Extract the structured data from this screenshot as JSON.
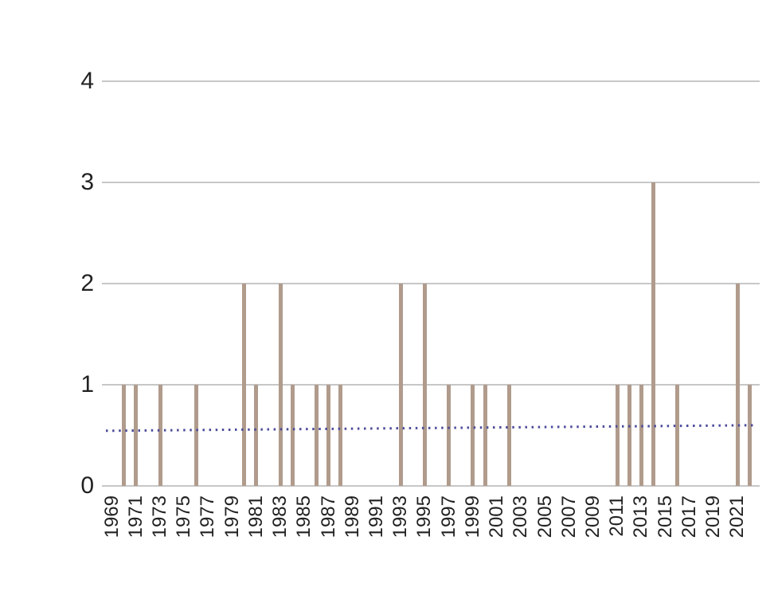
{
  "chart_data": {
    "type": "bar",
    "title": "",
    "xlabel": "",
    "ylabel": "",
    "years": [
      1969,
      1970,
      1971,
      1972,
      1973,
      1974,
      1975,
      1976,
      1977,
      1978,
      1979,
      1980,
      1981,
      1982,
      1983,
      1984,
      1985,
      1986,
      1987,
      1988,
      1989,
      1990,
      1991,
      1992,
      1993,
      1994,
      1995,
      1996,
      1997,
      1998,
      1999,
      2000,
      2001,
      2002,
      2003,
      2004,
      2005,
      2006,
      2007,
      2008,
      2009,
      2010,
      2011,
      2012,
      2013,
      2014,
      2015,
      2016,
      2017,
      2018,
      2019,
      2020,
      2021,
      2022
    ],
    "values": [
      0,
      1,
      1,
      0,
      1,
      0,
      0,
      1,
      0,
      0,
      0,
      2,
      1,
      0,
      2,
      1,
      0,
      1,
      1,
      1,
      0,
      0,
      0,
      0,
      2,
      0,
      2,
      0,
      1,
      0,
      1,
      1,
      0,
      1,
      0,
      0,
      0,
      0,
      0,
      0,
      0,
      0,
      1,
      1,
      1,
      3,
      0,
      1,
      0,
      0,
      0,
      0,
      2,
      1
    ],
    "xtick_labels": [
      "1969",
      "1971",
      "1973",
      "1975",
      "1977",
      "1979",
      "1981",
      "1983",
      "1985",
      "1987",
      "1989",
      "1991",
      "1993",
      "1995",
      "1997",
      "1999",
      "2001",
      "2003",
      "2005",
      "2007",
      "2009",
      "2011",
      "2013",
      "2015",
      "2017",
      "2019",
      "2021"
    ],
    "label_step": 2,
    "yticks": [
      0,
      1,
      2,
      3,
      4
    ],
    "ytick_labels": [
      "0",
      "1",
      "2",
      "3",
      "4"
    ],
    "ylim": [
      0,
      4
    ],
    "grid": "horizontal",
    "legend": "none",
    "trendline": {
      "style": "dotted",
      "color": "#4c4c9b",
      "start_value": 0.545,
      "end_value": 0.6
    },
    "colors": {
      "bar": "#b09b8c",
      "grid": "#c7c7c7",
      "text": "#222222"
    }
  }
}
